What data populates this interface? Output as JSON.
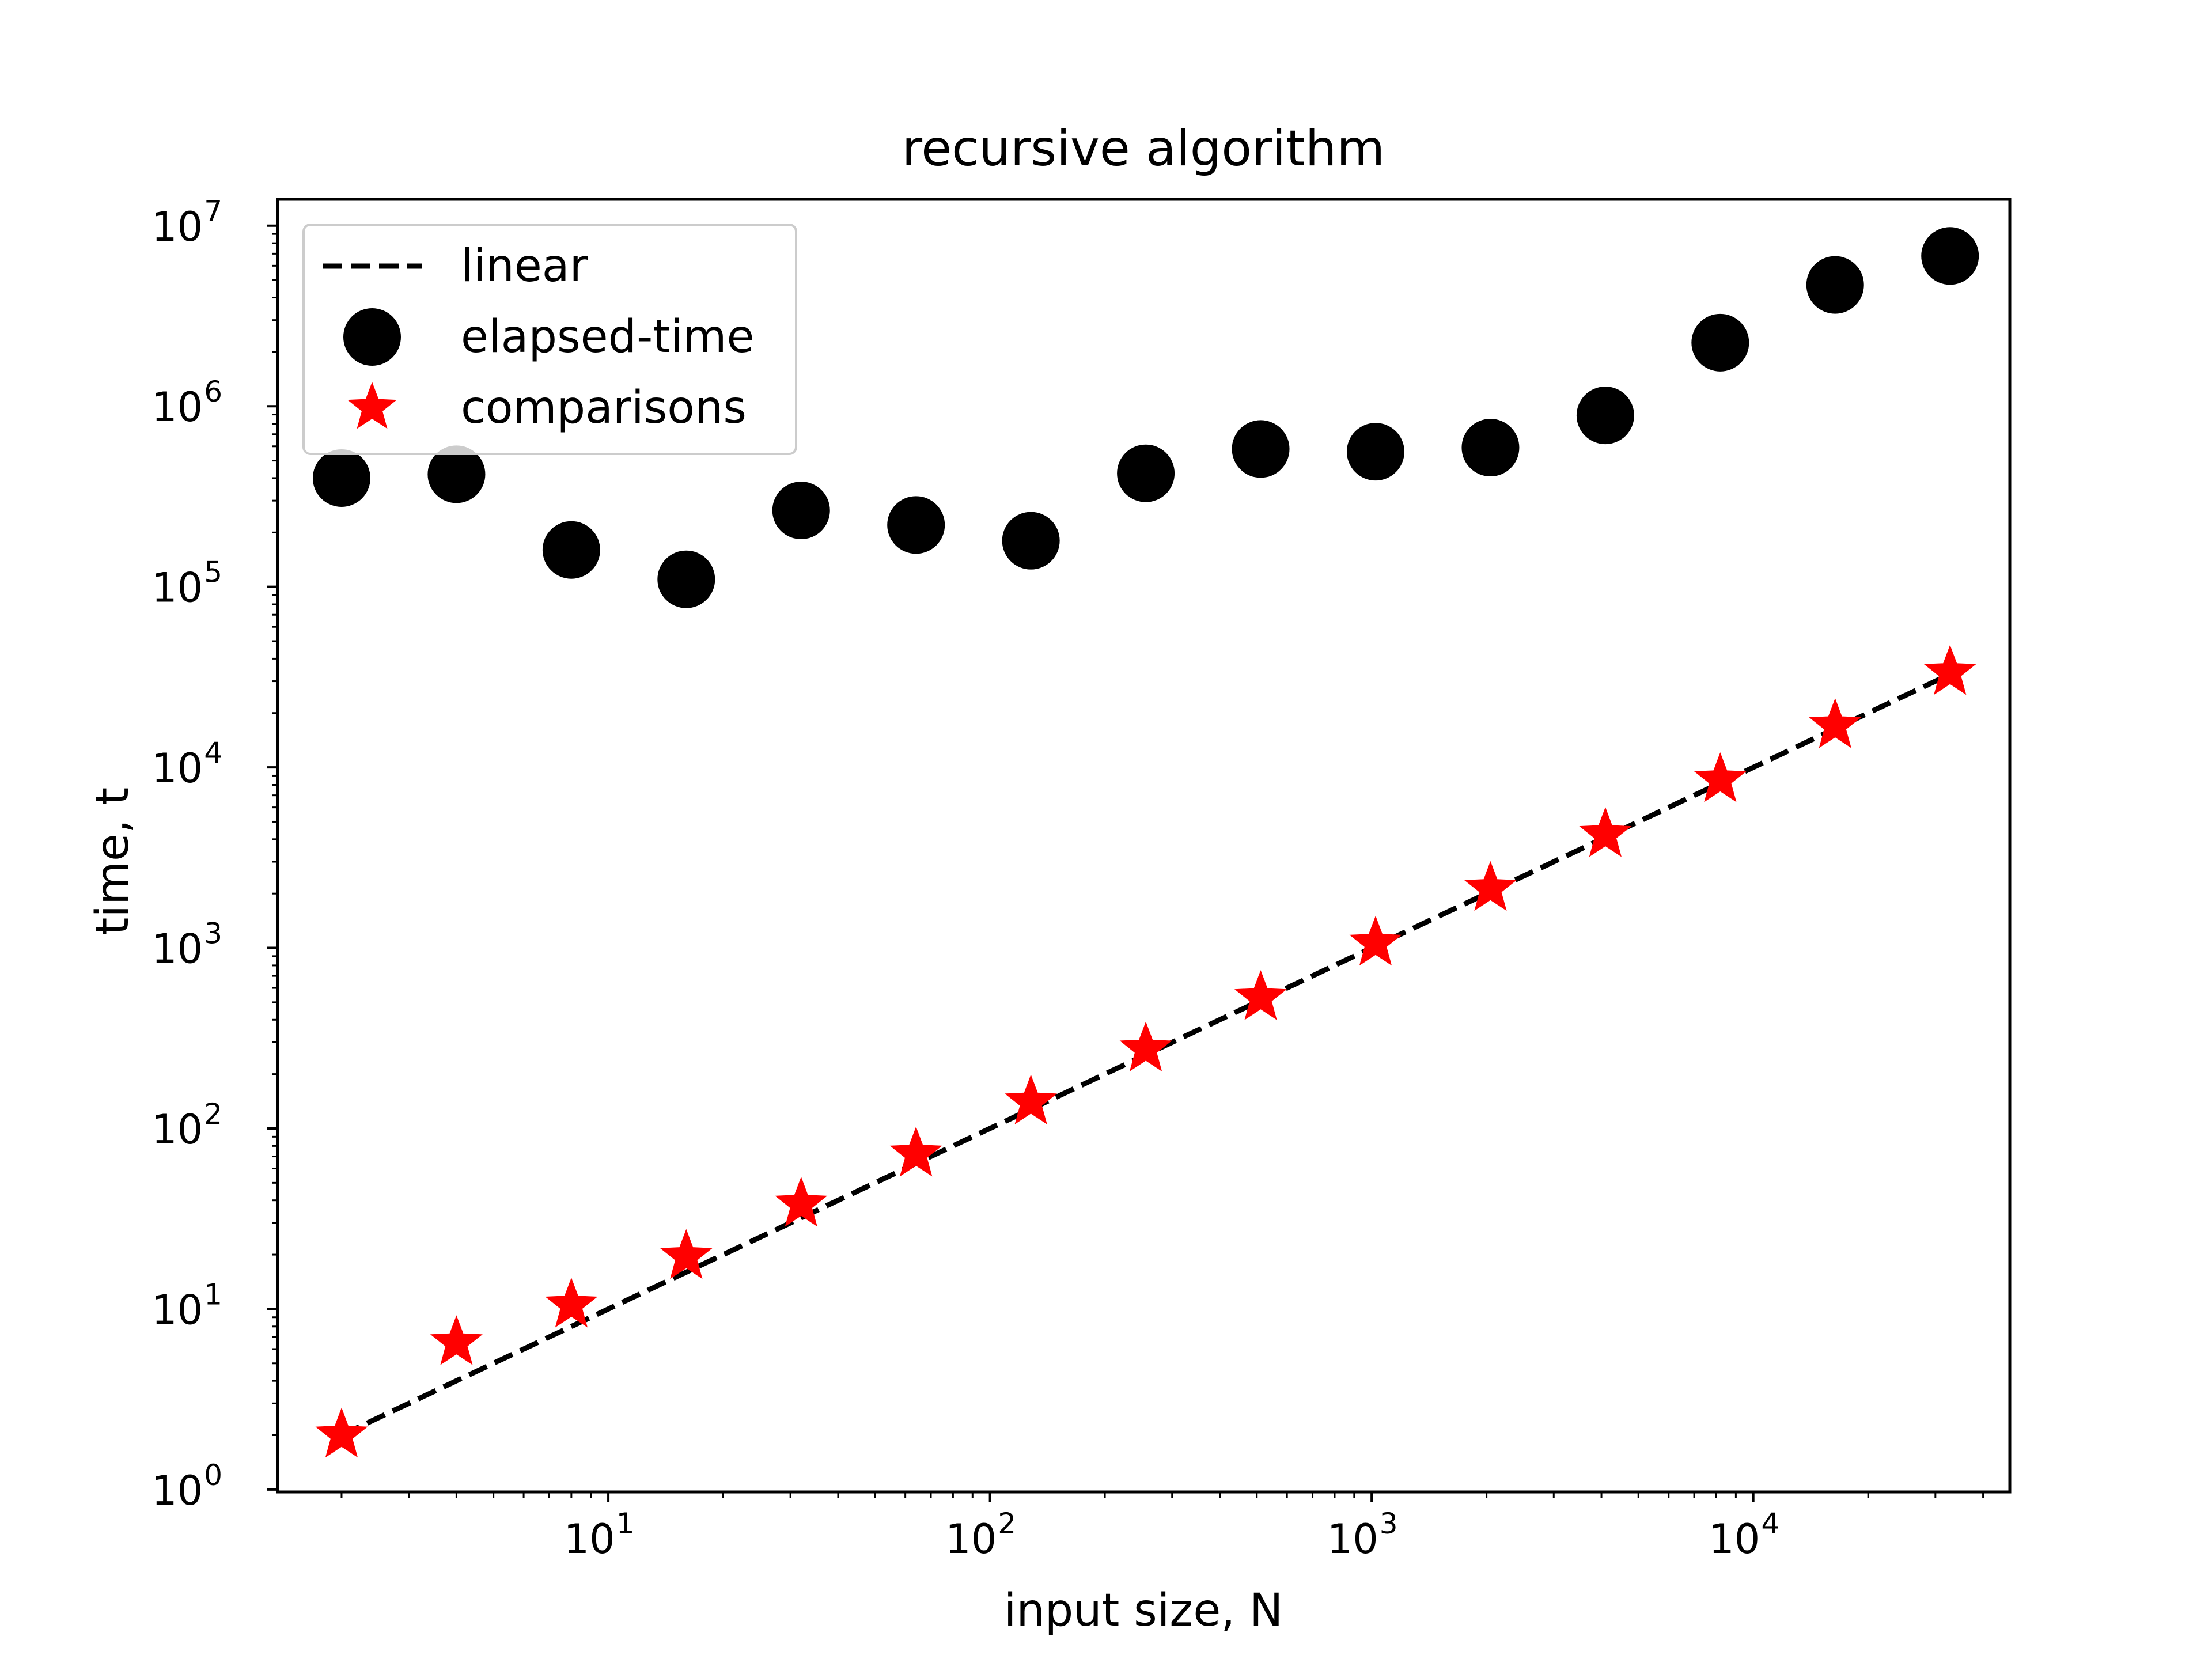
{
  "chart_data": {
    "type": "scatter",
    "title": "recursive algorithm",
    "xlabel": "input size, N",
    "ylabel": "time, t",
    "xscale": "log",
    "yscale": "log",
    "xlim": [
      1.36,
      47000
    ],
    "ylim": [
      0.97,
      14000000
    ],
    "x_ticks": [
      {
        "value": 10,
        "base": "10",
        "exp": "1"
      },
      {
        "value": 100,
        "base": "10",
        "exp": "2"
      },
      {
        "value": 1000,
        "base": "10",
        "exp": "3"
      },
      {
        "value": 10000,
        "base": "10",
        "exp": "4"
      }
    ],
    "y_ticks": [
      {
        "value": 1,
        "base": "10",
        "exp": "0"
      },
      {
        "value": 10,
        "base": "10",
        "exp": "1"
      },
      {
        "value": 100,
        "base": "10",
        "exp": "2"
      },
      {
        "value": 1000,
        "base": "10",
        "exp": "3"
      },
      {
        "value": 10000,
        "base": "10",
        "exp": "4"
      },
      {
        "value": 100000,
        "base": "10",
        "exp": "5"
      },
      {
        "value": 1000000,
        "base": "10",
        "exp": "6"
      },
      {
        "value": 10000000,
        "base": "10",
        "exp": "7"
      }
    ],
    "grid": false,
    "legend_position": "top-left",
    "x": [
      2,
      4,
      8,
      16,
      32,
      64,
      128,
      256,
      512,
      1024,
      2048,
      4096,
      8192,
      16384,
      32768
    ],
    "series": [
      {
        "name": "linear",
        "style": "dashed-line",
        "color": "#000000",
        "values": [
          2,
          4,
          8,
          16,
          32,
          64,
          128,
          256,
          512,
          1024,
          2048,
          4096,
          8192,
          16384,
          32768
        ]
      },
      {
        "name": "elapsed-time",
        "style": "circle-marker",
        "color": "#000000",
        "values": [
          400000,
          420000,
          160000,
          110000,
          265000,
          220000,
          180000,
          425000,
          580000,
          560000,
          590000,
          890000,
          2250000,
          4700000,
          6800000
        ]
      },
      {
        "name": "comparisons",
        "style": "star-marker",
        "color": "#ff0000",
        "values": [
          2,
          6.5,
          10.5,
          19.5,
          38,
          72,
          140,
          275,
          530,
          1060,
          2130,
          4240,
          8530,
          17000,
          33500
        ]
      }
    ]
  }
}
